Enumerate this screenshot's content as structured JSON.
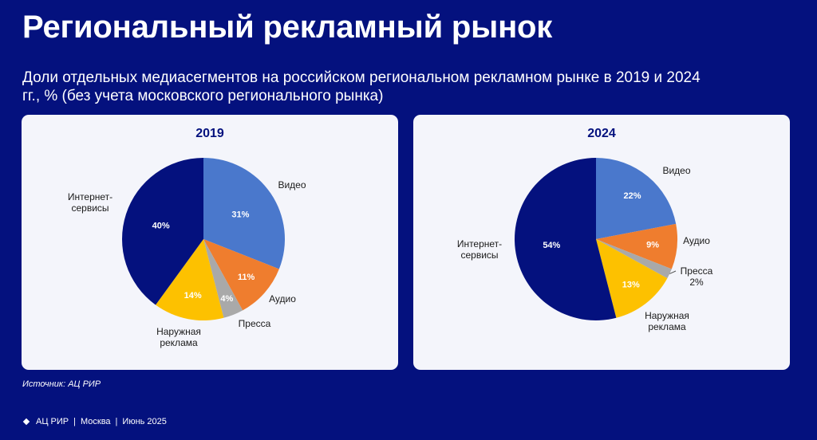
{
  "header": {
    "title": "Региональный рекламный рынок",
    "subtitle": "Доли отдельных медиасегментов на российском региональном рекламном рынке в 2019 и 2024 гг., % (без учета московского регионального рынка)"
  },
  "chart_data": [
    {
      "type": "pie",
      "title": "2019",
      "unit": "%",
      "slices": [
        {
          "name": "Видео",
          "value": 31,
          "label": "31%",
          "color": "#4a78cc"
        },
        {
          "name": "Аудио",
          "value": 11,
          "label": "11%",
          "color": "#ef7d2e"
        },
        {
          "name": "Пресса",
          "value": 4,
          "label": "4%",
          "color": "#a9a9a9"
        },
        {
          "name": "Наружная реклама",
          "value": 14,
          "label": "14%",
          "color": "#fdc100"
        },
        {
          "name": "Интернет-сервисы",
          "value": 40,
          "label": "40%",
          "color": "#04117e"
        }
      ]
    },
    {
      "type": "pie",
      "title": "2024",
      "unit": "%",
      "slices": [
        {
          "name": "Видео",
          "value": 22,
          "label": "22%",
          "color": "#4a78cc"
        },
        {
          "name": "Аудио",
          "value": 9,
          "label": "9%",
          "color": "#ef7d2e"
        },
        {
          "name": "Пресса",
          "value": 2,
          "label": "2%",
          "color": "#a9a9a9"
        },
        {
          "name": "Наружная реклама",
          "value": 13,
          "label": "13%",
          "color": "#fdc100"
        },
        {
          "name": "Интернет-сервисы",
          "value": 54,
          "label": "54%",
          "color": "#04117e"
        }
      ]
    }
  ],
  "source": "Источник: АЦ РИР",
  "footer": {
    "org": "АЦ РИР",
    "city": "Москва",
    "date": "Июнь 2025",
    "separator": "|"
  }
}
